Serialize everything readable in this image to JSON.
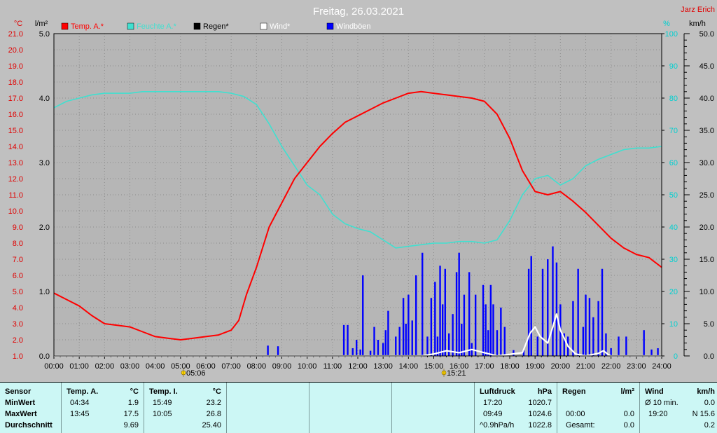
{
  "title": "Freitag, 26.03.2021",
  "author": "Jarz Erich",
  "colors": {
    "temp": "#ff0000",
    "humidity": "#40e0d0",
    "rain": "#000000",
    "wind": "#ffffff",
    "gust": "#0000ff",
    "tempAxis": "#e00000",
    "humAxis": "#00d0d0"
  },
  "legend": [
    {
      "label": "Temp. A.*",
      "color": "#ff0000"
    },
    {
      "label": "Feuchte A.*",
      "color": "#40e0d0"
    },
    {
      "label": "Regen*",
      "color": "#000000"
    },
    {
      "label": "Wind*",
      "color": "#ffffff"
    },
    {
      "label": "Windböen",
      "color": "#0000ff"
    }
  ],
  "markers": {
    "sunrise": "05:06",
    "sunset": "15:21"
  },
  "chart_data": {
    "type": "line",
    "title": "Freitag, 26.03.2021",
    "x_range_hours": [
      0,
      24
    ],
    "x_ticks": [
      "00:00",
      "01:00",
      "02:00",
      "03:00",
      "04:00",
      "05:00",
      "06:00",
      "07:00",
      "08:00",
      "09:00",
      "10:00",
      "11:00",
      "12:00",
      "13:00",
      "14:00",
      "15:00",
      "16:00",
      "17:00",
      "18:00",
      "19:00",
      "20:00",
      "21:00",
      "22:00",
      "23:00",
      "24:00"
    ],
    "axes": {
      "temp": {
        "unit": "°C",
        "range": [
          1.0,
          21.0
        ],
        "ticks": [
          "1.0",
          "2.0",
          "3.0",
          "4.0",
          "5.0",
          "6.0",
          "7.0",
          "8.0",
          "9.0",
          "10.0",
          "11.0",
          "12.0",
          "13.0",
          "14.0",
          "15.0",
          "16.0",
          "17.0",
          "18.0",
          "19.0",
          "20.0",
          "21.0"
        ]
      },
      "rain": {
        "unit": "l/m²",
        "range": [
          0,
          5
        ],
        "ticks": [
          "0.0",
          "1.0",
          "2.0",
          "3.0",
          "4.0",
          "5.0"
        ]
      },
      "humidity": {
        "unit": "%",
        "range": [
          0,
          100
        ],
        "ticks": [
          "0",
          "10",
          "20",
          "30",
          "40",
          "50",
          "60",
          "70",
          "80",
          "90",
          "100"
        ]
      },
      "wind": {
        "unit": "km/h",
        "range": [
          0,
          50
        ],
        "ticks": [
          "0.0",
          "5.0",
          "10.0",
          "15.0",
          "20.0",
          "25.0",
          "30.0",
          "35.0",
          "40.0",
          "45.0",
          "50.0"
        ]
      }
    },
    "grid": true,
    "legend_position": "top",
    "series": [
      {
        "name": "Temp. A.*",
        "axis": "temp",
        "points": [
          [
            0,
            4.9
          ],
          [
            0.5,
            4.5
          ],
          [
            1,
            4.1
          ],
          [
            1.5,
            3.5
          ],
          [
            2,
            3.0
          ],
          [
            2.5,
            2.9
          ],
          [
            3,
            2.8
          ],
          [
            3.5,
            2.5
          ],
          [
            4,
            2.2
          ],
          [
            4.5,
            2.1
          ],
          [
            5,
            2.0
          ],
          [
            5.5,
            2.1
          ],
          [
            6,
            2.2
          ],
          [
            6.5,
            2.3
          ],
          [
            7,
            2.6
          ],
          [
            7.3,
            3.2
          ],
          [
            7.6,
            4.8
          ],
          [
            8,
            6.5
          ],
          [
            8.5,
            9.0
          ],
          [
            9,
            10.5
          ],
          [
            9.5,
            12.0
          ],
          [
            10,
            13.0
          ],
          [
            10.5,
            14.0
          ],
          [
            11,
            14.8
          ],
          [
            11.5,
            15.5
          ],
          [
            12,
            15.9
          ],
          [
            12.5,
            16.3
          ],
          [
            13,
            16.7
          ],
          [
            13.5,
            17.0
          ],
          [
            14,
            17.3
          ],
          [
            14.5,
            17.4
          ],
          [
            15,
            17.3
          ],
          [
            15.5,
            17.2
          ],
          [
            16,
            17.1
          ],
          [
            16.5,
            17.0
          ],
          [
            17,
            16.8
          ],
          [
            17.5,
            16.0
          ],
          [
            18,
            14.5
          ],
          [
            18.5,
            12.5
          ],
          [
            19,
            11.2
          ],
          [
            19.5,
            11.0
          ],
          [
            20,
            11.2
          ],
          [
            20.5,
            10.6
          ],
          [
            21,
            9.9
          ],
          [
            21.5,
            9.1
          ],
          [
            22,
            8.3
          ],
          [
            22.5,
            7.7
          ],
          [
            23,
            7.3
          ],
          [
            23.5,
            7.1
          ],
          [
            24,
            6.5
          ]
        ]
      },
      {
        "name": "Feuchte A.*",
        "axis": "humidity",
        "points": [
          [
            0,
            77
          ],
          [
            0.5,
            79
          ],
          [
            1,
            80
          ],
          [
            1.5,
            81
          ],
          [
            2,
            81.5
          ],
          [
            2.5,
            81.5
          ],
          [
            3,
            81.5
          ],
          [
            3.5,
            82
          ],
          [
            4,
            82
          ],
          [
            5,
            82
          ],
          [
            5.5,
            82
          ],
          [
            6,
            82
          ],
          [
            6.5,
            82
          ],
          [
            7,
            81.5
          ],
          [
            7.5,
            80.5
          ],
          [
            8,
            78
          ],
          [
            8.5,
            72
          ],
          [
            9,
            65
          ],
          [
            9.5,
            59
          ],
          [
            10,
            53
          ],
          [
            10.5,
            50
          ],
          [
            11,
            44
          ],
          [
            11.5,
            41
          ],
          [
            12,
            39.5
          ],
          [
            12.5,
            38.5
          ],
          [
            13,
            36
          ],
          [
            13.5,
            33.5
          ],
          [
            14,
            34
          ],
          [
            14.5,
            34.5
          ],
          [
            15,
            35
          ],
          [
            15.5,
            35
          ],
          [
            16,
            35.5
          ],
          [
            16.5,
            35.5
          ],
          [
            17,
            35
          ],
          [
            17.5,
            36
          ],
          [
            18,
            42
          ],
          [
            18.5,
            50
          ],
          [
            19,
            55
          ],
          [
            19.5,
            56
          ],
          [
            20,
            53
          ],
          [
            20.5,
            55
          ],
          [
            21,
            59
          ],
          [
            21.5,
            61
          ],
          [
            22,
            62.5
          ],
          [
            22.5,
            64
          ],
          [
            23,
            64.5
          ],
          [
            23.5,
            64.5
          ],
          [
            24,
            65
          ]
        ]
      },
      {
        "name": "Wind*",
        "axis": "wind",
        "points": [
          [
            0,
            0
          ],
          [
            14.5,
            0
          ],
          [
            15,
            0.3
          ],
          [
            15.5,
            0.8
          ],
          [
            16,
            0.5
          ],
          [
            16.5,
            1.0
          ],
          [
            17,
            0.5
          ],
          [
            17.5,
            0
          ],
          [
            18.5,
            0.5
          ],
          [
            18.8,
            3.5
          ],
          [
            19,
            4.5
          ],
          [
            19.2,
            3.0
          ],
          [
            19.5,
            2.0
          ],
          [
            19.7,
            4.5
          ],
          [
            19.85,
            6.5
          ],
          [
            20,
            4.0
          ],
          [
            20.3,
            1.5
          ],
          [
            20.6,
            0.3
          ],
          [
            21,
            0
          ],
          [
            21.5,
            0.4
          ],
          [
            21.7,
            0.8
          ],
          [
            21.9,
            0.2
          ],
          [
            22,
            0
          ],
          [
            24,
            0
          ]
        ]
      }
    ],
    "gusts": {
      "name": "Windböen",
      "axis": "wind",
      "points": [
        [
          8.45,
          1.6
        ],
        [
          8.85,
          1.5
        ],
        [
          11.45,
          4.8
        ],
        [
          11.6,
          4.8
        ],
        [
          11.8,
          1.2
        ],
        [
          11.95,
          2.5
        ],
        [
          12.1,
          1.0
        ],
        [
          12.2,
          12.5
        ],
        [
          12.5,
          0.8
        ],
        [
          12.65,
          4.5
        ],
        [
          12.8,
          2.5
        ],
        [
          13.0,
          2.0
        ],
        [
          13.1,
          4.0
        ],
        [
          13.2,
          7.0
        ],
        [
          13.5,
          3.0
        ],
        [
          13.65,
          4.5
        ],
        [
          13.8,
          9.0
        ],
        [
          13.9,
          5.0
        ],
        [
          14.0,
          9.5
        ],
        [
          14.15,
          5.5
        ],
        [
          14.3,
          12.5
        ],
        [
          14.55,
          16.0
        ],
        [
          14.75,
          3.0
        ],
        [
          14.9,
          9.0
        ],
        [
          15.05,
          11.5
        ],
        [
          15.15,
          3.0
        ],
        [
          15.25,
          14.0
        ],
        [
          15.35,
          8.0
        ],
        [
          15.45,
          13.5
        ],
        [
          15.6,
          3.5
        ],
        [
          15.75,
          6.5
        ],
        [
          15.9,
          13.0
        ],
        [
          16.0,
          16.0
        ],
        [
          16.1,
          5.0
        ],
        [
          16.2,
          9.5
        ],
        [
          16.4,
          13.0
        ],
        [
          16.5,
          2.0
        ],
        [
          16.65,
          9.5
        ],
        [
          16.95,
          11.0
        ],
        [
          17.05,
          8.0
        ],
        [
          17.15,
          4.0
        ],
        [
          17.25,
          11.0
        ],
        [
          17.35,
          8.0
        ],
        [
          17.5,
          4.0
        ],
        [
          17.65,
          7.5
        ],
        [
          17.8,
          4.5
        ],
        [
          18.15,
          0.9
        ],
        [
          18.55,
          0.9
        ],
        [
          18.75,
          13.5
        ],
        [
          18.85,
          15.5
        ],
        [
          19.1,
          3.0
        ],
        [
          19.3,
          13.5
        ],
        [
          19.5,
          15.0
        ],
        [
          19.7,
          17.0
        ],
        [
          19.85,
          14.5
        ],
        [
          20.0,
          8.0
        ],
        [
          20.15,
          3.5
        ],
        [
          20.3,
          3.0
        ],
        [
          20.5,
          8.5
        ],
        [
          20.7,
          13.5
        ],
        [
          20.9,
          4.5
        ],
        [
          21.0,
          9.5
        ],
        [
          21.15,
          9.0
        ],
        [
          21.3,
          6.0
        ],
        [
          21.5,
          8.5
        ],
        [
          21.65,
          13.5
        ],
        [
          21.8,
          3.5
        ],
        [
          22.0,
          1.2
        ],
        [
          22.3,
          3.0
        ],
        [
          22.6,
          3.0
        ],
        [
          23.3,
          4.0
        ],
        [
          23.6,
          1.0
        ],
        [
          23.85,
          1.2
        ]
      ]
    },
    "rain_values": []
  },
  "stats": {
    "sensor": {
      "header": "Sensor",
      "rows": [
        "MinWert",
        "MaxWert",
        "Durchschnitt"
      ]
    },
    "tempA": {
      "header": "Temp. A.",
      "unit": "°C",
      "times": [
        "04:34",
        "13:45",
        ""
      ],
      "values": [
        "1.9",
        "17.5",
        "9.69"
      ]
    },
    "tempI": {
      "header": "Temp. I.",
      "unit": "°C",
      "times": [
        "15:49",
        "10:05",
        ""
      ],
      "values": [
        "23.2",
        "26.8",
        "25.40"
      ]
    },
    "pressure": {
      "header": "Luftdruck",
      "unit": "hPa",
      "times": [
        "17:20",
        "09:49",
        "^0.9hPa/h"
      ],
      "values": [
        "1020.7",
        "1024.6",
        "1022.8"
      ]
    },
    "rain": {
      "header": "Regen",
      "unit": "l/m²",
      "times": [
        "",
        "00:00",
        "Gesamt:"
      ],
      "values": [
        "",
        "0.0",
        "0.0"
      ]
    },
    "wind": {
      "header": "Wind",
      "unit": "km/h",
      "times": [
        "Ø 10 min.",
        "19:20",
        ""
      ],
      "values": [
        "0.0",
        "N 15.6",
        "0.2"
      ]
    }
  }
}
